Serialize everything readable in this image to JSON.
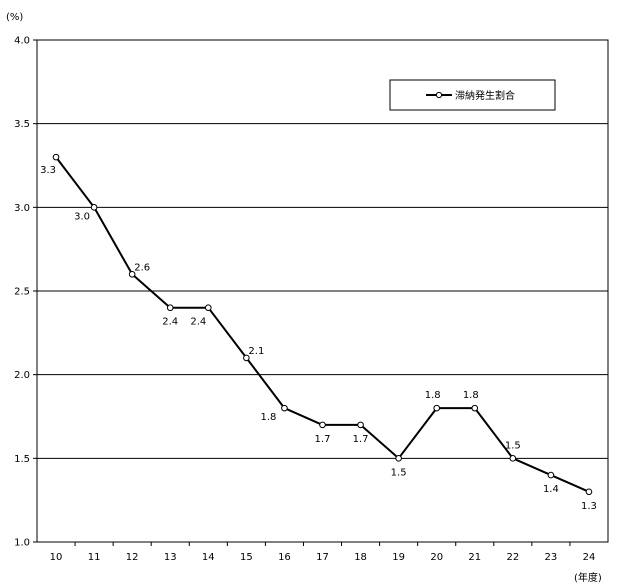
{
  "chart_data": {
    "type": "line",
    "y_unit": "(%)",
    "x_unit": "(年度)",
    "categories": [
      "10",
      "11",
      "12",
      "13",
      "14",
      "15",
      "16",
      "17",
      "18",
      "19",
      "20",
      "21",
      "22",
      "23",
      "24"
    ],
    "series": [
      {
        "name": "滞納発生割合",
        "values": [
          3.3,
          3.0,
          2.6,
          2.4,
          2.4,
          2.1,
          1.8,
          1.7,
          1.7,
          1.5,
          1.8,
          1.8,
          1.5,
          1.4,
          1.3
        ],
        "labels": [
          "3.3",
          "3.0",
          "2.6",
          "2.4",
          "2.4",
          "2.1",
          "1.8",
          "1.7",
          "1.7",
          "1.5",
          "1.8",
          "1.8",
          "1.5",
          "1.4",
          "1.3"
        ]
      }
    ],
    "ylim": [
      1.0,
      4.0
    ],
    "yticks": [
      "1.0",
      "1.5",
      "2.0",
      "2.5",
      "3.0",
      "3.5",
      "4.0"
    ],
    "grid": true,
    "legend_position": "top-right",
    "colors": {
      "line": "#000000",
      "marker_fill": "#ffffff",
      "grid": "#000000"
    }
  }
}
